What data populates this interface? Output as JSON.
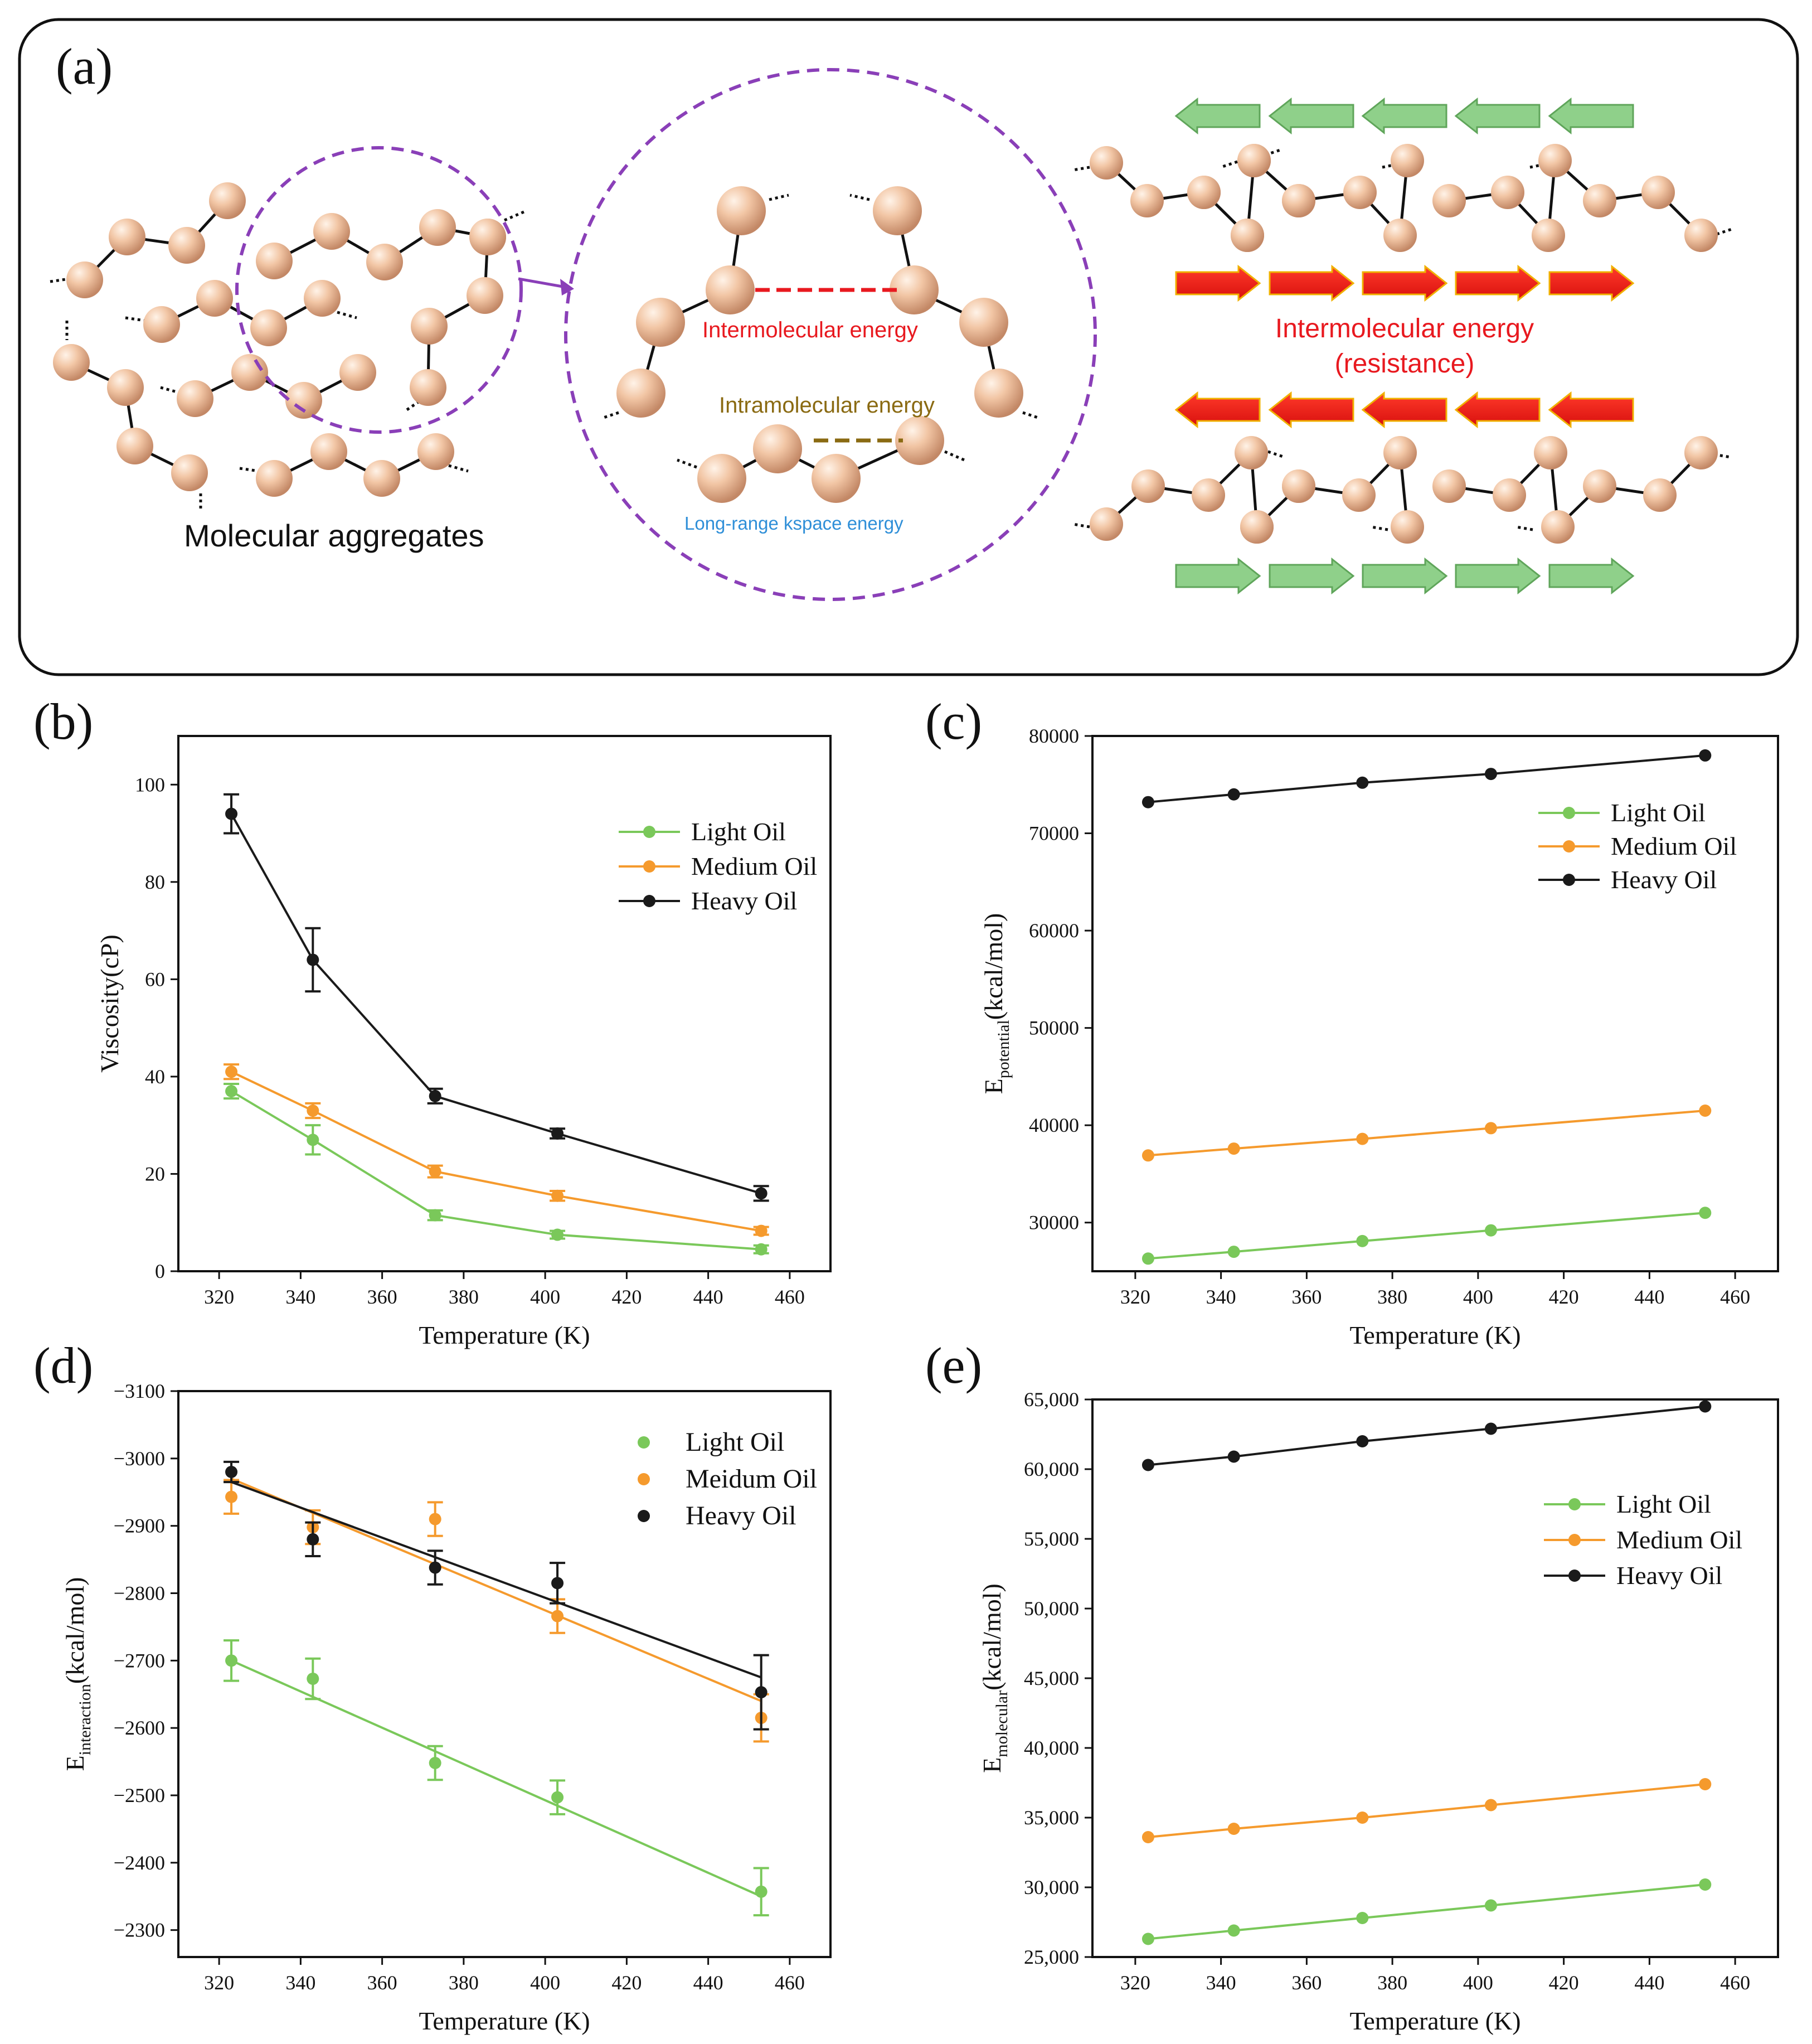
{
  "panel_a": {
    "label": "(a)",
    "aggregates_label": "Molecular aggregates",
    "intermolecular_label": "Intermolecular energy",
    "intramolecular_label": "Intramolecular energy",
    "kspace_label": "Long-range kspace energy",
    "resistance_line1": "Intermolecular  energy",
    "resistance_line2": "(resistance)",
    "colors": {
      "intermolecular": "#e8191f",
      "intramolecular": "#8a6a12",
      "kspace": "#2f8fd8",
      "circle": "#8a3fb8",
      "red_arrow": "#e41a1c",
      "green_arrow": "#8fd08a"
    }
  },
  "chart_data": [
    {
      "panel": "(b)",
      "type": "line",
      "xlabel": "Temperature (K)",
      "ylabel": "Viscosity(cP)",
      "xlim": [
        310,
        470
      ],
      "ylim": [
        0,
        110
      ],
      "xticks": [
        320,
        340,
        360,
        380,
        400,
        420,
        440,
        460
      ],
      "yticks": [
        0,
        20,
        40,
        60,
        80,
        100
      ],
      "ytick_labels": [
        "0",
        "20",
        "40",
        "60",
        "80",
        "100"
      ],
      "x": [
        323,
        343,
        373,
        403,
        453
      ],
      "legend": "top-right",
      "series": [
        {
          "name": "Light Oil",
          "color": "#7ac85a",
          "values": [
            37,
            27,
            11.5,
            7.5,
            4.5
          ],
          "errors": [
            1.5,
            3,
            1,
            0.8,
            0.8
          ]
        },
        {
          "name": "Medium Oil",
          "color": "#f59a2d",
          "values": [
            41,
            33,
            20.5,
            15.5,
            8.3
          ],
          "errors": [
            1.5,
            1.5,
            1.2,
            1,
            0.8
          ]
        },
        {
          "name": "Heavy Oil",
          "color": "#1a1a1a",
          "values": [
            94,
            64,
            36,
            28.3,
            16
          ],
          "errors": [
            4,
            6.5,
            1.5,
            1,
            1.5
          ]
        }
      ]
    },
    {
      "panel": "(c)",
      "type": "line",
      "xlabel": "Temperature (K)",
      "ylabel_main": "E",
      "ylabel_sub": "potential",
      "ylabel_unit": "(kcal/mol)",
      "xlim": [
        310,
        470
      ],
      "ylim": [
        25000,
        80000
      ],
      "xticks": [
        320,
        340,
        360,
        380,
        400,
        420,
        440,
        460
      ],
      "yticks": [
        30000,
        40000,
        50000,
        60000,
        70000,
        80000
      ],
      "ytick_labels": [
        "30000",
        "40000",
        "50000",
        "60000",
        "70000",
        "80000"
      ],
      "x": [
        323,
        343,
        373,
        403,
        453
      ],
      "legend": "top-right",
      "series": [
        {
          "name": "Light Oil",
          "color": "#7ac85a",
          "values": [
            26300,
            27000,
            28100,
            29200,
            31000
          ]
        },
        {
          "name": "Medium Oil",
          "color": "#f59a2d",
          "values": [
            36900,
            37600,
            38600,
            39700,
            41500
          ]
        },
        {
          "name": "Heavy Oil",
          "color": "#1a1a1a",
          "values": [
            73200,
            74000,
            75200,
            76100,
            78000
          ]
        }
      ]
    },
    {
      "panel": "(d)",
      "type": "scatter",
      "xlabel": "Temperature (K)",
      "ylabel_main": "E",
      "ylabel_sub": "interaction",
      "ylabel_unit": "(kcal/mol)",
      "xlim": [
        310,
        470
      ],
      "ylim": [
        -2260,
        -3100
      ],
      "xticks": [
        320,
        340,
        360,
        380,
        400,
        420,
        440,
        460
      ],
      "yticks": [
        -2300,
        -2400,
        -2500,
        -2600,
        -2700,
        -2800,
        -2900,
        -3000,
        -3100
      ],
      "ytick_labels": [
        "−2300",
        "−2400",
        "−2500",
        "−2600",
        "−2700",
        "−2800",
        "−2900",
        "−3000",
        "−3100"
      ],
      "x": [
        323,
        343,
        373,
        403,
        453
      ],
      "legend": "top-right",
      "series": [
        {
          "name": "Light Oil",
          "color": "#7ac85a",
          "values": [
            -2700,
            -2673,
            -2548,
            -2497,
            -2357
          ],
          "errors": [
            30,
            30,
            25,
            25,
            35
          ],
          "fit": [
            -2700,
            -2350
          ]
        },
        {
          "name": "Meidum Oil",
          "color": "#f59a2d",
          "values": [
            -2943,
            -2898,
            -2910,
            -2766,
            -2615
          ],
          "errors": [
            25,
            25,
            25,
            25,
            35
          ],
          "fit": [
            -2970,
            -2640
          ]
        },
        {
          "name": "Heavy Oil",
          "color": "#1a1a1a",
          "values": [
            -2980,
            -2880,
            -2838,
            -2815,
            -2653
          ],
          "errors": [
            15,
            25,
            25,
            30,
            55
          ],
          "fit": [
            -2965,
            -2675
          ]
        }
      ]
    },
    {
      "panel": "(e)",
      "type": "line",
      "xlabel": "Temperature (K)",
      "ylabel_main": "E",
      "ylabel_sub": "molecular",
      "ylabel_unit": "(kcal/mol)",
      "xlim": [
        310,
        470
      ],
      "ylim": [
        25000,
        65000
      ],
      "xticks": [
        320,
        340,
        360,
        380,
        400,
        420,
        440,
        460
      ],
      "yticks": [
        25000,
        30000,
        35000,
        40000,
        45000,
        50000,
        55000,
        60000,
        65000
      ],
      "ytick_labels": [
        "25,000",
        "30,000",
        "35,000",
        "40,000",
        "45,000",
        "50,000",
        "55,000",
        "60,000",
        "65,000"
      ],
      "x": [
        323,
        343,
        373,
        403,
        453
      ],
      "legend": "top-right",
      "series": [
        {
          "name": "Light Oil",
          "color": "#7ac85a",
          "values": [
            26300,
            26900,
            27800,
            28700,
            30200
          ]
        },
        {
          "name": "Medium Oil",
          "color": "#f59a2d",
          "values": [
            33600,
            34200,
            35000,
            35900,
            37400
          ]
        },
        {
          "name": "Heavy Oil",
          "color": "#1a1a1a",
          "values": [
            60300,
            60900,
            62000,
            62900,
            64500
          ]
        }
      ]
    }
  ]
}
